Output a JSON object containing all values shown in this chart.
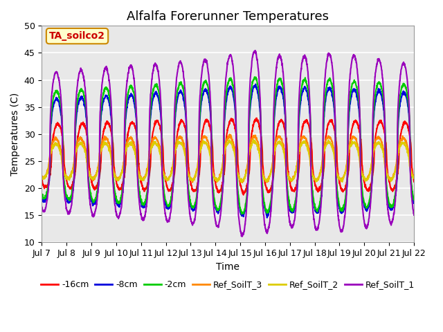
{
  "title": "Alfalfa Forerunner Temperatures",
  "xlabel": "Time",
  "ylabel": "Temperatures (C)",
  "annotation_text": "TA_soilco2",
  "annotation_color": "#cc0000",
  "annotation_bg": "#ffffcc",
  "annotation_border": "#cc8800",
  "ylim": [
    10,
    50
  ],
  "x_tick_labels": [
    "Jul 7",
    "Jul 8",
    "Jul 9",
    "Jul 10",
    "Jul 11",
    "Jul 12",
    "Jul 13",
    "Jul 14",
    "Jul 15",
    "Jul 16",
    "Jul 17",
    "Jul 18",
    "Jul 19",
    "Jul 20",
    "Jul 21",
    "Jul 22"
  ],
  "series": {
    "-16cm": {
      "color": "#ff0000",
      "lw": 1.5
    },
    "-8cm": {
      "color": "#0000dd",
      "lw": 1.5
    },
    "-2cm": {
      "color": "#00cc00",
      "lw": 1.5
    },
    "Ref_SoilT_3": {
      "color": "#ff8800",
      "lw": 1.5
    },
    "Ref_SoilT_2": {
      "color": "#ddcc00",
      "lw": 1.5
    },
    "Ref_SoilT_1": {
      "color": "#9900bb",
      "lw": 1.5
    }
  },
  "background_color": "#e8e8e8",
  "grid_color": "#ffffff",
  "title_fontsize": 13,
  "axis_fontsize": 10,
  "tick_fontsize": 9
}
